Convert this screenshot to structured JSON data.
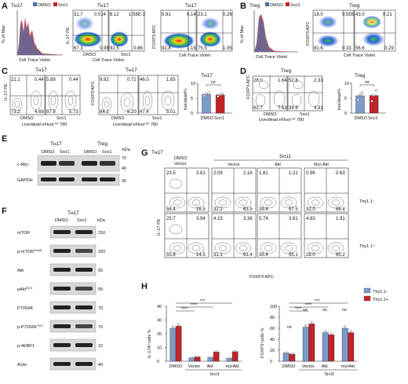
{
  "panels": {
    "a": {
      "letter": "A",
      "title": "Tн17",
      "legend": [
        "DMSO",
        "Srci1"
      ],
      "hist_ylabel": "% of Max",
      "hist_xlabel": "Cell Trace Violet",
      "pair1_title": "Tн17",
      "pair1_ylabel": "IL-17 PE",
      "pair1_xlabel": "Cell Trace Violet",
      "pair2_title": "Tн17",
      "pair2_ylabel": "FOXP3 APC",
      "pair2_xlabel": "Cell Trace Violet",
      "dmso": {
        "label": "DMSO",
        "q": [
          "31.7",
          "0.014",
          "67.3",
          "0.98"
        ]
      },
      "srci1": {
        "label": "Srci1",
        "q": [
          "8.12",
          "1.58E-3",
          "92.5",
          "0.86"
        ]
      },
      "dmso2": {
        "q": [
          "5.91",
          "0.14",
          "92.8",
          "1.15"
        ]
      },
      "srci12": {
        "q": [
          "23.1",
          "0.26",
          "75.5",
          "1.05"
        ]
      }
    },
    "b": {
      "letter": "B",
      "title": "Treg",
      "legend": [
        "DMSO",
        "Srci1"
      ],
      "hist_ylabel": "% of Max",
      "hist_xlabel": "Cell Trace Violet",
      "pair_title": "Treg",
      "pair_ylabel": "FOXP3 APC",
      "pair_xlabel": "Cell Trace Violet",
      "dmso": {
        "q": [
          "18.0",
          "0.555",
          "81.6",
          "0.33"
        ]
      },
      "srci1": {
        "q": [
          "43.0",
          "0.21",
          "56.6",
          "0.29"
        ]
      }
    },
    "c": {
      "letter": "C",
      "pair1_title": "Tн17",
      "pair1_ylabel": "IL-17 PE",
      "pair1_xlabel": "Live/dead eFluor™ 780",
      "pair2_title": "Tн17",
      "pair2_ylabel": "FOXP3 APC",
      "pair2_xlabel": "Live/dead eFluor™ 780",
      "dmso": {
        "label": "DMSO",
        "q": [
          "21.1",
          "0.44",
          "73.2",
          "4.69"
        ]
      },
      "srci1": {
        "label": "Srci1",
        "q": [
          "5.89",
          "0.44",
          "87.9",
          "5.73"
        ]
      },
      "dmso2": {
        "label": "DMSO",
        "q": [
          "9.92",
          "0.72",
          "84.2",
          "5.20"
        ]
      },
      "srci12": {
        "label": "Srci1",
        "q": [
          "46.0",
          "1.65",
          "47.4",
          "5.01"
        ]
      },
      "bar_title": "Tн17",
      "bar_ylabel": "live/dead%",
      "ns": "ns"
    },
    "d": {
      "letter": "D",
      "title": "Treg",
      "ylabel": "FOXP3 APC",
      "xlabel": "Live/dead eFluor™ 780",
      "dmso": {
        "label": "DMSO",
        "q": [
          "28.0",
          "1.64",
          "62.7",
          "7.63"
        ]
      },
      "srci1": {
        "label": "Srci1",
        "q": [
          "52.8",
          "2.31",
          "39.9",
          "4.91"
        ]
      },
      "bar_title": "Treg",
      "bar_ylabel": "live/dead%",
      "ns": "ns"
    },
    "e": {
      "letter": "E",
      "group1": "Tн17",
      "group2": "Treg",
      "lanes": [
        "DMSO",
        "Srci1",
        "DMSO",
        "Srci1"
      ],
      "kda": "kDa",
      "rows": [
        "c-Myc",
        "GAPDH"
      ],
      "markers": [
        "70",
        "40",
        "35"
      ]
    },
    "f": {
      "letter": "F",
      "title": "Tн17",
      "lanes": [
        "DMSO",
        "Srci1"
      ],
      "kda": "kDa",
      "rows": [
        {
          "label": "mTOR",
          "marker": "250"
        },
        {
          "label": "p-mTOR",
          "sup": "S2448",
          "marker": "250"
        },
        {
          "label": "Akt",
          "marker": "55"
        },
        {
          "label": "pAkt",
          "sup": "S473",
          "marker": "55"
        },
        {
          "label": "P70S6K",
          "marker": "70"
        },
        {
          "label": "p-P70S6K",
          "sup": "T421",
          "marker": "70"
        },
        {
          "label": "p-4EBP1",
          "marker": "15"
        },
        {
          "label": "Actin",
          "marker": "40"
        }
      ]
    },
    "g": {
      "letter": "G",
      "title": "Tн17",
      "col0": [
        "DMSO",
        "Vector"
      ],
      "group": "Srci1",
      "cols": [
        "Vector",
        "Akt",
        "Myr-Akt"
      ],
      "rows": [
        "Thy1.1⁻",
        "Thy1.1⁺"
      ],
      "ylabel": "IL-17 PE",
      "xlabel": "FOXP3 APC",
      "plots": [
        [
          "23.5",
          "3.61",
          "56.4",
          "16.5"
        ],
        [
          "2.09",
          "2.16",
          "32.2",
          "63.5"
        ],
        [
          "1.81",
          "1.21",
          "39.4",
          "57.5"
        ],
        [
          "0.96",
          "0.63",
          "32.0",
          "66.4"
        ],
        [
          "25.7",
          "3.94",
          "55.8",
          "14.5"
        ],
        [
          "4.15",
          "3.36",
          "31.1",
          "61.4"
        ],
        [
          "5.74",
          "3.61",
          "35.6",
          "55.1"
        ],
        [
          "4.83",
          "1.91",
          "28.0",
          "65.2"
        ]
      ]
    },
    "h": {
      "letter": "H",
      "legend": [
        "Thy1.1-",
        "Thy1.1+"
      ],
      "chart1_ylabel": "IL-17A⁺cells %",
      "chart2_ylabel": "FOXP3⁺cells %",
      "group": "Srci1",
      "sig": [
        "***",
        "****",
        "****"
      ],
      "ns": "ns"
    }
  },
  "chart_data": [
    {
      "type": "bar",
      "name": "C-bar",
      "title": "Tн17",
      "ylabel": "live/dead%",
      "categories": [
        "DMSO",
        "Srci1"
      ],
      "values": [
        6.3,
        6.1
      ],
      "ylim": [
        0,
        10
      ],
      "yticks": [
        0,
        5,
        10
      ],
      "colors": [
        "#7d9bc9",
        "#c0232a"
      ],
      "points": [
        [
          5.8,
          6.5,
          6.6
        ],
        [
          5.6,
          6.2,
          6.4
        ]
      ]
    },
    {
      "type": "bar",
      "name": "D-bar",
      "title": "Treg",
      "ylabel": "live/dead%",
      "categories": [
        "DMSO",
        "Srci1"
      ],
      "values": [
        5.8,
        5.9
      ],
      "ylim": [
        0,
        10
      ],
      "yticks": [
        0,
        5,
        10
      ],
      "colors": [
        "#7d9bc9",
        "#c0232a"
      ],
      "points": [
        [
          4.5,
          6.2,
          6.8
        ],
        [
          4.0,
          6.0,
          7.6
        ]
      ]
    },
    {
      "type": "bar",
      "name": "H-IL17A",
      "ylabel": "IL-17A⁺cells %",
      "categories": [
        "DMSO",
        "Vector",
        "Akt",
        "myrAkt"
      ],
      "series": [
        {
          "name": "Thy1.1-",
          "values": [
            24,
            2.5,
            2.8,
            2.2
          ]
        },
        {
          "name": "Thy1.1+",
          "values": [
            25.5,
            3.2,
            6.8,
            7.0
          ]
        }
      ],
      "ylim": [
        0,
        40
      ],
      "yticks": [
        0,
        10,
        20,
        30,
        40
      ]
    },
    {
      "type": "bar",
      "name": "H-FOXP3",
      "ylabel": "FOXP3⁺cells %",
      "categories": [
        "DMSO",
        "Vector",
        "Akt",
        "myrAkt"
      ],
      "series": [
        {
          "name": "Thy1.1-",
          "values": [
            15,
            62,
            52,
            60
          ]
        },
        {
          "name": "Thy1.1+",
          "values": [
            13,
            68,
            48,
            52
          ]
        }
      ],
      "ylim": [
        0,
        100
      ],
      "yticks": [
        0,
        20,
        40,
        60,
        80,
        100
      ]
    }
  ]
}
